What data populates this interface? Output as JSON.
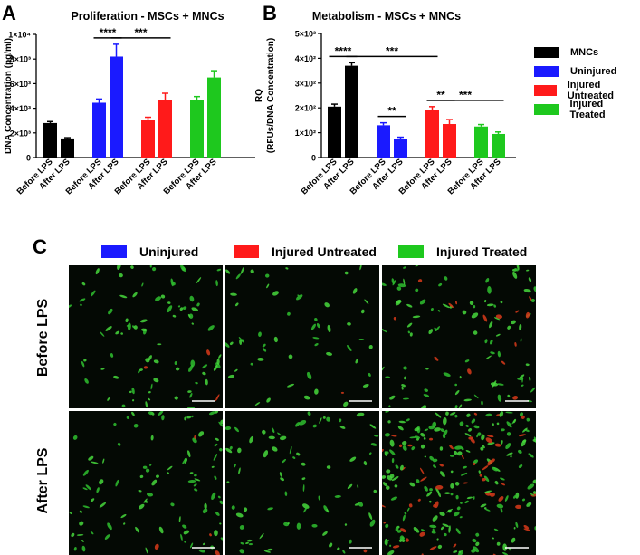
{
  "panels": {
    "a": "A",
    "b": "B",
    "c": "C"
  },
  "colors": {
    "mncs": "#000000",
    "uninjured": "#1a1aff",
    "injured_untreated": "#ff1a1a",
    "injured_treated": "#1ec81e"
  },
  "chart_data": [
    {
      "type": "bar",
      "title": "Proliferation - MSCs + MNCs",
      "ylabel": "DNA Concentration (pg/ml)",
      "yticks": [
        {
          "label": "0",
          "value": 0
        },
        {
          "label": "2×10³",
          "value": 2000
        },
        {
          "label": "4×10³",
          "value": 4000
        },
        {
          "label": "6×10³",
          "value": 6000
        },
        {
          "label": "8×10³",
          "value": 8000
        },
        {
          "label": "1×10⁴",
          "value": 10000
        }
      ],
      "ylim": [
        0,
        10000
      ],
      "grid": false,
      "bars": [
        {
          "group": "MNCs",
          "label": "Before LPS",
          "value": 2800,
          "error": 120
        },
        {
          "group": "MNCs",
          "label": "After LPS",
          "value": 1550,
          "error": 60
        },
        {
          "group": "Uninjured",
          "label": "Before LPS",
          "value": 4450,
          "error": 300
        },
        {
          "group": "Uninjured",
          "label": "After LPS",
          "value": 8200,
          "error": 1000
        },
        {
          "group": "Injured Untreated",
          "label": "Before LPS",
          "value": 3050,
          "error": 220
        },
        {
          "group": "Injured Untreated",
          "label": "After LPS",
          "value": 4700,
          "error": 520
        },
        {
          "group": "Injured Treated",
          "label": "Before LPS",
          "value": 4700,
          "error": 250
        },
        {
          "group": "Injured Treated",
          "label": "After LPS",
          "value": 6500,
          "error": 550
        }
      ],
      "annotations": [
        {
          "text": "****",
          "from": 2,
          "to": 3
        },
        {
          "text": "***",
          "from": 3,
          "to": 5
        }
      ]
    },
    {
      "type": "bar",
      "title": "Metabolism - MSCs + MNCs",
      "ylabel_lines": [
        "RQ",
        "(RFUs/DNA Concentration)"
      ],
      "yticks": [
        {
          "label": "0",
          "value": 0
        },
        {
          "label": "1×10²",
          "value": 100
        },
        {
          "label": "2×10²",
          "value": 200
        },
        {
          "label": "3×10²",
          "value": 300
        },
        {
          "label": "4×10²",
          "value": 400
        },
        {
          "label": "5×10²",
          "value": 500
        }
      ],
      "ylim": [
        0,
        500
      ],
      "grid": false,
      "bars": [
        {
          "group": "MNCs",
          "label": "Before LPS",
          "value": 205,
          "error": 10
        },
        {
          "group": "MNCs",
          "label": "After LPS",
          "value": 370,
          "error": 12
        },
        {
          "group": "Uninjured",
          "label": "Before LPS",
          "value": 130,
          "error": 10
        },
        {
          "group": "Uninjured",
          "label": "After LPS",
          "value": 75,
          "error": 7
        },
        {
          "group": "Injured Untreated",
          "label": "Before LPS",
          "value": 190,
          "error": 15
        },
        {
          "group": "Injured Untreated",
          "label": "After LPS",
          "value": 135,
          "error": 18
        },
        {
          "group": "Injured Treated",
          "label": "Before LPS",
          "value": 125,
          "error": 8
        },
        {
          "group": "Injured Treated",
          "label": "After LPS",
          "value": 95,
          "error": 8
        }
      ],
      "annotations": [
        {
          "text": "****",
          "from": 0,
          "to": 1
        },
        {
          "text": "**",
          "from": 2,
          "to": 3
        },
        {
          "text": "***",
          "from": 1,
          "to": 4
        },
        {
          "text": "**",
          "from": 4,
          "to": 5
        },
        {
          "text": "***",
          "from": 4,
          "to": 7
        }
      ]
    }
  ],
  "legend_b": [
    {
      "name": "MNCs",
      "color": "#000000"
    },
    {
      "name": "Uninjured",
      "color": "#1a1aff"
    },
    {
      "name": "Injured Untreated",
      "color": "#ff1a1a"
    },
    {
      "name": "Injured Treated",
      "color": "#1ec81e"
    }
  ],
  "panel_c": {
    "legend": [
      {
        "name": "Uninjured",
        "color": "#1a1aff"
      },
      {
        "name": "Injured Untreated",
        "color": "#ff1a1a"
      },
      {
        "name": "Injured Treated",
        "color": "#1ec81e"
      }
    ],
    "rows": [
      "Before LPS",
      "After LPS"
    ]
  }
}
